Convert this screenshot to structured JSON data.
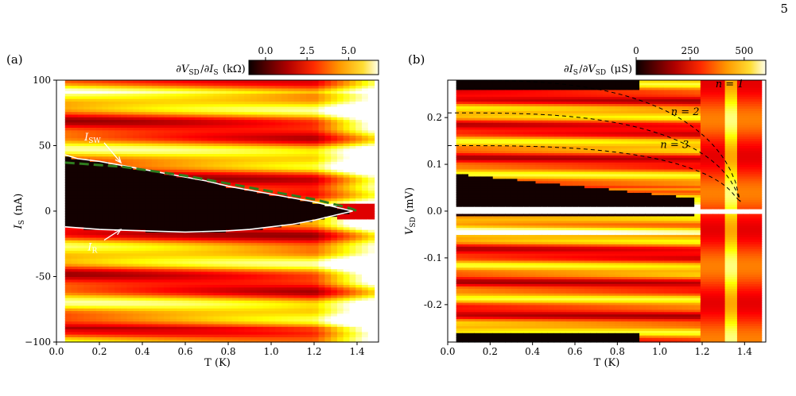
{
  "page_number": "5",
  "chart_data": [
    {
      "panel": "(a)",
      "type": "heatmap",
      "colorbar_label": "∂V_SD/∂I_S (kΩ)",
      "colorbar_range": [
        -1.0,
        6.8
      ],
      "colorbar_ticks": [
        "0.0",
        "2.5",
        "5.0"
      ],
      "colorbar_tick_values": [
        0.0,
        2.5,
        5.0
      ],
      "colormap": "hot",
      "xlabel": "T (K)",
      "ylabel": "I_S (nA)",
      "xlim": [
        0.0,
        1.5
      ],
      "ylim": [
        -100,
        100
      ],
      "xticks": [
        0.0,
        0.2,
        0.4,
        0.6,
        0.8,
        1.0,
        1.2,
        1.4
      ],
      "xtick_labels": [
        "0.0",
        "0.2",
        "0.4",
        "0.6",
        "0.8",
        "1.0",
        "1.2",
        "1.4"
      ],
      "yticks": [
        -100,
        -50,
        0,
        50,
        100
      ],
      "ytick_labels": [
        "−100",
        "-50",
        "0",
        "50",
        "100"
      ],
      "data_T_range": [
        0.04,
        1.48
      ],
      "switching_current": {
        "label": "I_SW",
        "T": [
          0.04,
          0.1,
          0.2,
          0.3,
          0.4,
          0.5,
          0.6,
          0.7,
          0.8,
          0.9,
          1.0,
          1.1,
          1.2,
          1.3,
          1.38
        ],
        "I": [
          43,
          40,
          38,
          35,
          32,
          29,
          26,
          23,
          19,
          16,
          13,
          10,
          7,
          3,
          0
        ]
      },
      "retrapping_current": {
        "label": "I_R",
        "T": [
          0.04,
          0.2,
          0.4,
          0.6,
          0.8,
          0.9,
          1.0,
          1.1,
          1.2,
          1.3,
          1.38
        ],
        "I": [
          -12,
          -14,
          -15,
          -16,
          -15,
          -14,
          -12,
          -10,
          -7,
          -3,
          0
        ]
      },
      "fit_curve": {
        "T": [
          0.04,
          0.3,
          0.6,
          0.9,
          1.1,
          1.2,
          1.3,
          1.35,
          1.38,
          1.4
        ],
        "I": [
          37,
          34,
          27,
          18,
          12,
          9,
          5,
          3,
          1.5,
          0
        ]
      },
      "annotations": [
        {
          "text": "I_SW",
          "T": 0.2,
          "I": 57,
          "arrow_to_T": 0.3,
          "arrow_to_I": 37
        },
        {
          "text": "I_R",
          "T": 0.2,
          "I": -27,
          "arrow_to_T": 0.3,
          "arrow_to_I": -14
        }
      ]
    },
    {
      "panel": "(b)",
      "type": "heatmap",
      "colorbar_label": "∂I_S/∂V_SD (μS)",
      "colorbar_range": [
        0,
        600
      ],
      "colorbar_ticks": [
        "0",
        "250",
        "500"
      ],
      "colorbar_tick_values": [
        0,
        250,
        500
      ],
      "colormap": "hot",
      "xlabel": "T (K)",
      "ylabel": "V_SD (mV)",
      "xlim": [
        0.0,
        1.5
      ],
      "ylim": [
        -0.28,
        0.28
      ],
      "xticks": [
        0.0,
        0.2,
        0.4,
        0.6,
        0.8,
        1.0,
        1.2,
        1.4
      ],
      "xtick_labels": [
        "0.0",
        "0.2",
        "0.4",
        "0.6",
        "0.8",
        "1.0",
        "1.2",
        "1.4"
      ],
      "yticks": [
        -0.2,
        -0.1,
        0.0,
        0.1,
        0.2
      ],
      "ytick_labels": [
        "-0.2",
        "-0.1",
        "0.0",
        "0.1",
        "0.2"
      ],
      "data_T_range": [
        0.04,
        1.48
      ],
      "dashed_curves": [
        {
          "label": "n = 1",
          "V0": 0.28,
          "Tc": 1.38
        },
        {
          "label": "n = 2",
          "V0": 0.21,
          "Tc": 1.38
        },
        {
          "label": "n = 3",
          "V0": 0.14,
          "Tc": 1.38
        }
      ],
      "labels": [
        {
          "text": "n = 1",
          "T": 1.33,
          "V": 0.265
        },
        {
          "text": "n = 2",
          "T": 1.12,
          "V": 0.205
        },
        {
          "text": "n = 3",
          "T": 1.07,
          "V": 0.135
        }
      ]
    }
  ]
}
